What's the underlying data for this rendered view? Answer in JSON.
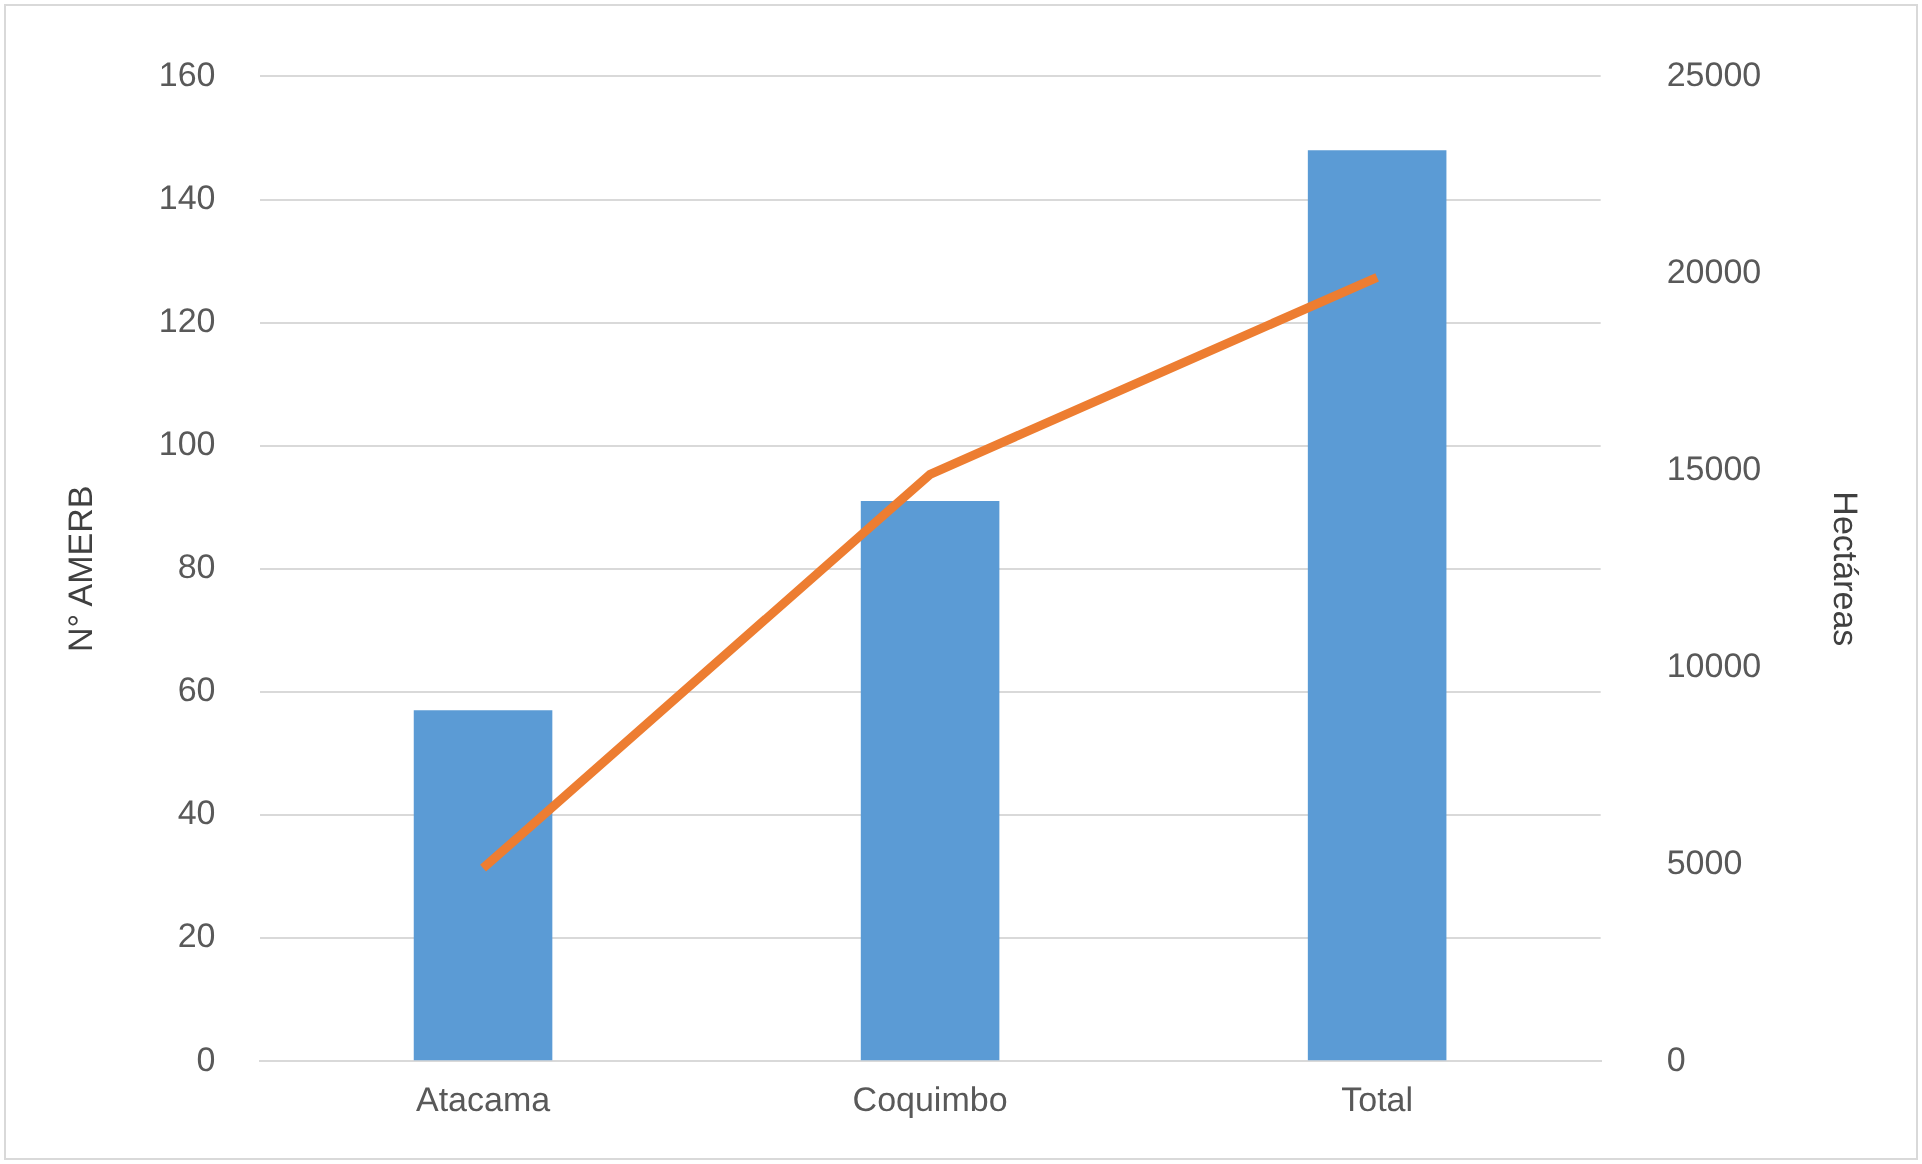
{
  "chart_data": {
    "type": "bar",
    "categories": [
      "Atacama",
      "Coquimbo",
      "Total"
    ],
    "series": [
      {
        "color": "#5b9bd5",
        "values": [
          57,
          91,
          148
        ]
      },
      {
        "type": "line",
        "axis": "y2",
        "color": "#ed7d31",
        "values": [
          4900,
          14900,
          19900
        ]
      }
    ],
    "ylabel": "N° AMERB",
    "y2label": "Hectáreas",
    "ylim": [
      0,
      160
    ],
    "yticks": [
      0,
      20,
      40,
      60,
      80,
      100,
      120,
      140,
      160
    ],
    "y2lim": [
      0,
      25000
    ],
    "y2ticks": [
      0,
      5000,
      10000,
      15000,
      20000,
      25000
    ],
    "grid": "y",
    "legend": false,
    "marker": "none"
  }
}
